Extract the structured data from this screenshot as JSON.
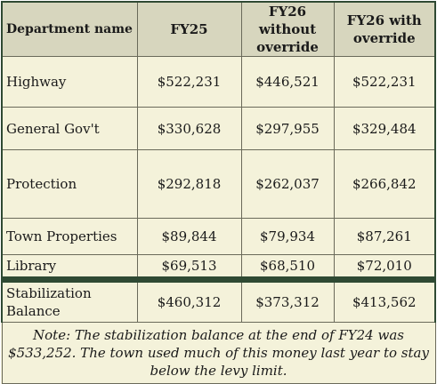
{
  "table": {
    "headers": {
      "department": "Department name",
      "fy25": "FY25",
      "fy26_without": "FY26 without override",
      "fy26_with": "FY26 with override"
    },
    "rows": [
      {
        "name": "Highway",
        "fy25": "$522,231",
        "fy26_without": "$446,521",
        "fy26_with": "$522,231"
      },
      {
        "name": "General Gov't",
        "fy25": "$330,628",
        "fy26_without": "$297,955",
        "fy26_with": "$329,484"
      },
      {
        "name": "Protection",
        "fy25": "$292,818",
        "fy26_without": "$262,037",
        "fy26_with": "$266,842"
      },
      {
        "name": "Town Properties",
        "fy25": "$89,844",
        "fy26_without": "$79,934",
        "fy26_with": "$87,261"
      },
      {
        "name": "Library",
        "fy25": "$69,513",
        "fy26_without": "$68,510",
        "fy26_with": "$72,010"
      },
      {
        "name": "Stabilization Balance",
        "fy25": "$460,312",
        "fy26_without": "$373,312",
        "fy26_with": "$413,562"
      }
    ],
    "note": "Note: The stabilization balance at the end of FY24 was $533,252. The town used much of this money last year to stay below the levy limit."
  },
  "colors": {
    "header_bg": "#d7d6be",
    "cell_bg": "#f4f2da",
    "border_dark_green": "#2f4a33"
  }
}
